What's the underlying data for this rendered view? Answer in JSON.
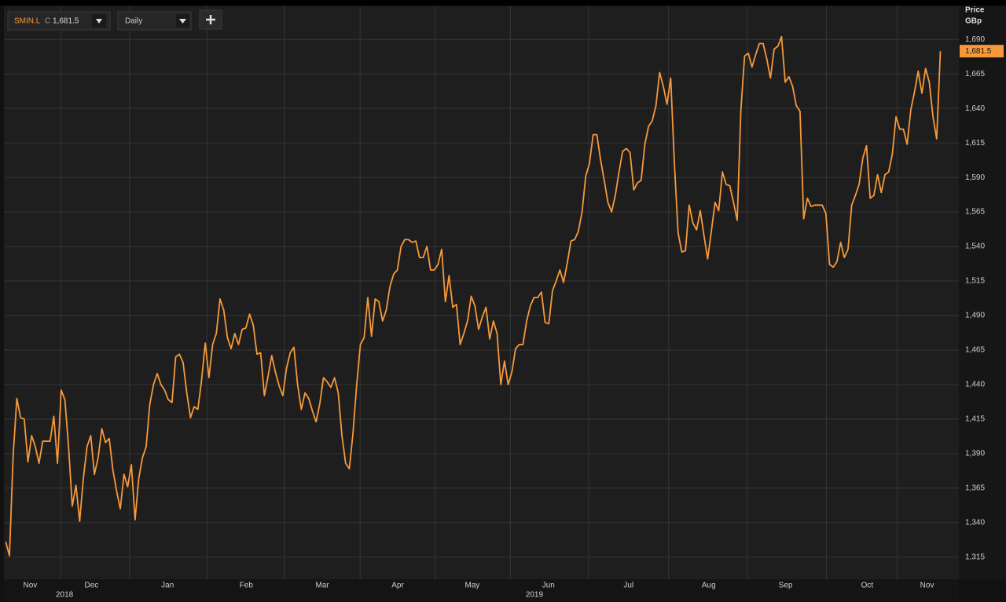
{
  "toolbar": {
    "symbol": "SMIN.L",
    "close_prefix": "C",
    "close": "1,681.5",
    "interval": "Daily"
  },
  "chart_data": {
    "type": "line",
    "y_label": "Price",
    "y_unit": "GBp",
    "color": "#f7993a",
    "grid": true,
    "ylim": [
      1299,
      1714
    ],
    "yticks": [
      {
        "value": 1315,
        "label": "1,315"
      },
      {
        "value": 1340,
        "label": "1,340"
      },
      {
        "value": 1365,
        "label": "1,365"
      },
      {
        "value": 1390,
        "label": "1,390"
      },
      {
        "value": 1415,
        "label": "1,415"
      },
      {
        "value": 1440,
        "label": "1,440"
      },
      {
        "value": 1465,
        "label": "1,465"
      },
      {
        "value": 1490,
        "label": "1,490"
      },
      {
        "value": 1515,
        "label": "1,515"
      },
      {
        "value": 1540,
        "label": "1,540"
      },
      {
        "value": 1565,
        "label": "1,565"
      },
      {
        "value": 1590,
        "label": "1,590"
      },
      {
        "value": 1615,
        "label": "1,615"
      },
      {
        "value": 1640,
        "label": "1,640"
      },
      {
        "value": 1665,
        "label": "1,665"
      },
      {
        "value": 1690,
        "label": "1,690"
      }
    ],
    "xlim": [
      -0.5,
      258
    ],
    "xticks": [
      {
        "value": 6.6,
        "label": "Nov"
      },
      {
        "value": 23.2,
        "label": "Dec"
      },
      {
        "value": 43.8,
        "label": "Jan"
      },
      {
        "value": 65.1,
        "label": "Feb"
      },
      {
        "value": 85.7,
        "label": "Mar"
      },
      {
        "value": 106.1,
        "label": "Apr"
      },
      {
        "value": 126.3,
        "label": "May"
      },
      {
        "value": 146.9,
        "label": "Jun"
      },
      {
        "value": 168.6,
        "label": "Jul"
      },
      {
        "value": 190.3,
        "label": "Aug"
      },
      {
        "value": 211.1,
        "label": "Sep"
      },
      {
        "value": 233.2,
        "label": "Oct"
      },
      {
        "value": 249.4,
        "label": "Nov"
      }
    ],
    "year_ticks": [
      {
        "value": 15.9,
        "label": "2018"
      },
      {
        "value": 143.1,
        "label": "2019"
      }
    ],
    "last_value_label": "1,681.5",
    "values": [
      1326,
      1316,
      1389,
      1430,
      1416,
      1415,
      1384,
      1403,
      1395,
      1383,
      1399,
      1399,
      1399,
      1417,
      1383,
      1436,
      1429,
      1395,
      1352,
      1367,
      1341,
      1372,
      1395,
      1403,
      1375,
      1387,
      1408,
      1398,
      1401,
      1378,
      1363,
      1350,
      1375,
      1366,
      1382,
      1342,
      1372,
      1387,
      1395,
      1426,
      1440,
      1448,
      1440,
      1436,
      1429,
      1427,
      1460,
      1462,
      1456,
      1434,
      1416,
      1424,
      1422,
      1443,
      1470,
      1445,
      1469,
      1477,
      1502,
      1494,
      1474,
      1466,
      1477,
      1469,
      1480,
      1481,
      1491,
      1483,
      1462,
      1463,
      1432,
      1446,
      1461,
      1449,
      1439,
      1432,
      1452,
      1463,
      1467,
      1440,
      1422,
      1434,
      1430,
      1421,
      1413,
      1426,
      1445,
      1442,
      1438,
      1445,
      1434,
      1403,
      1383,
      1379,
      1405,
      1440,
      1469,
      1474,
      1503,
      1475,
      1502,
      1500,
      1486,
      1494,
      1511,
      1520,
      1523,
      1540,
      1545,
      1545,
      1543,
      1544,
      1532,
      1532,
      1540,
      1523,
      1523,
      1527,
      1538,
      1500,
      1519,
      1496,
      1498,
      1469,
      1477,
      1486,
      1504,
      1497,
      1480,
      1489,
      1496,
      1473,
      1486,
      1477,
      1440,
      1457,
      1440,
      1449,
      1466,
      1469,
      1469,
      1486,
      1497,
      1503,
      1503,
      1507,
      1485,
      1484,
      1508,
      1515,
      1523,
      1514,
      1528,
      1544,
      1545,
      1551,
      1565,
      1591,
      1600,
      1621,
      1621,
      1603,
      1588,
      1572,
      1565,
      1577,
      1594,
      1609,
      1611,
      1608,
      1581,
      1586,
      1588,
      1614,
      1627,
      1631,
      1642,
      1666,
      1656,
      1643,
      1662,
      1600,
      1550,
      1536,
      1537,
      1570,
      1557,
      1552,
      1566,
      1548,
      1531,
      1551,
      1572,
      1566,
      1594,
      1585,
      1584,
      1572,
      1559,
      1639,
      1678,
      1680,
      1670,
      1679,
      1687,
      1687,
      1676,
      1662,
      1683,
      1685,
      1692,
      1659,
      1663,
      1656,
      1642,
      1638,
      1560,
      1575,
      1569,
      1570,
      1570,
      1570,
      1564,
      1527,
      1525,
      1529,
      1543,
      1532,
      1538,
      1570,
      1577,
      1585,
      1604,
      1613,
      1575,
      1577,
      1592,
      1579,
      1592,
      1594,
      1607,
      1634,
      1625,
      1625,
      1614,
      1639,
      1652,
      1667,
      1651,
      1669,
      1659,
      1634,
      1618,
      1681.5
    ]
  }
}
